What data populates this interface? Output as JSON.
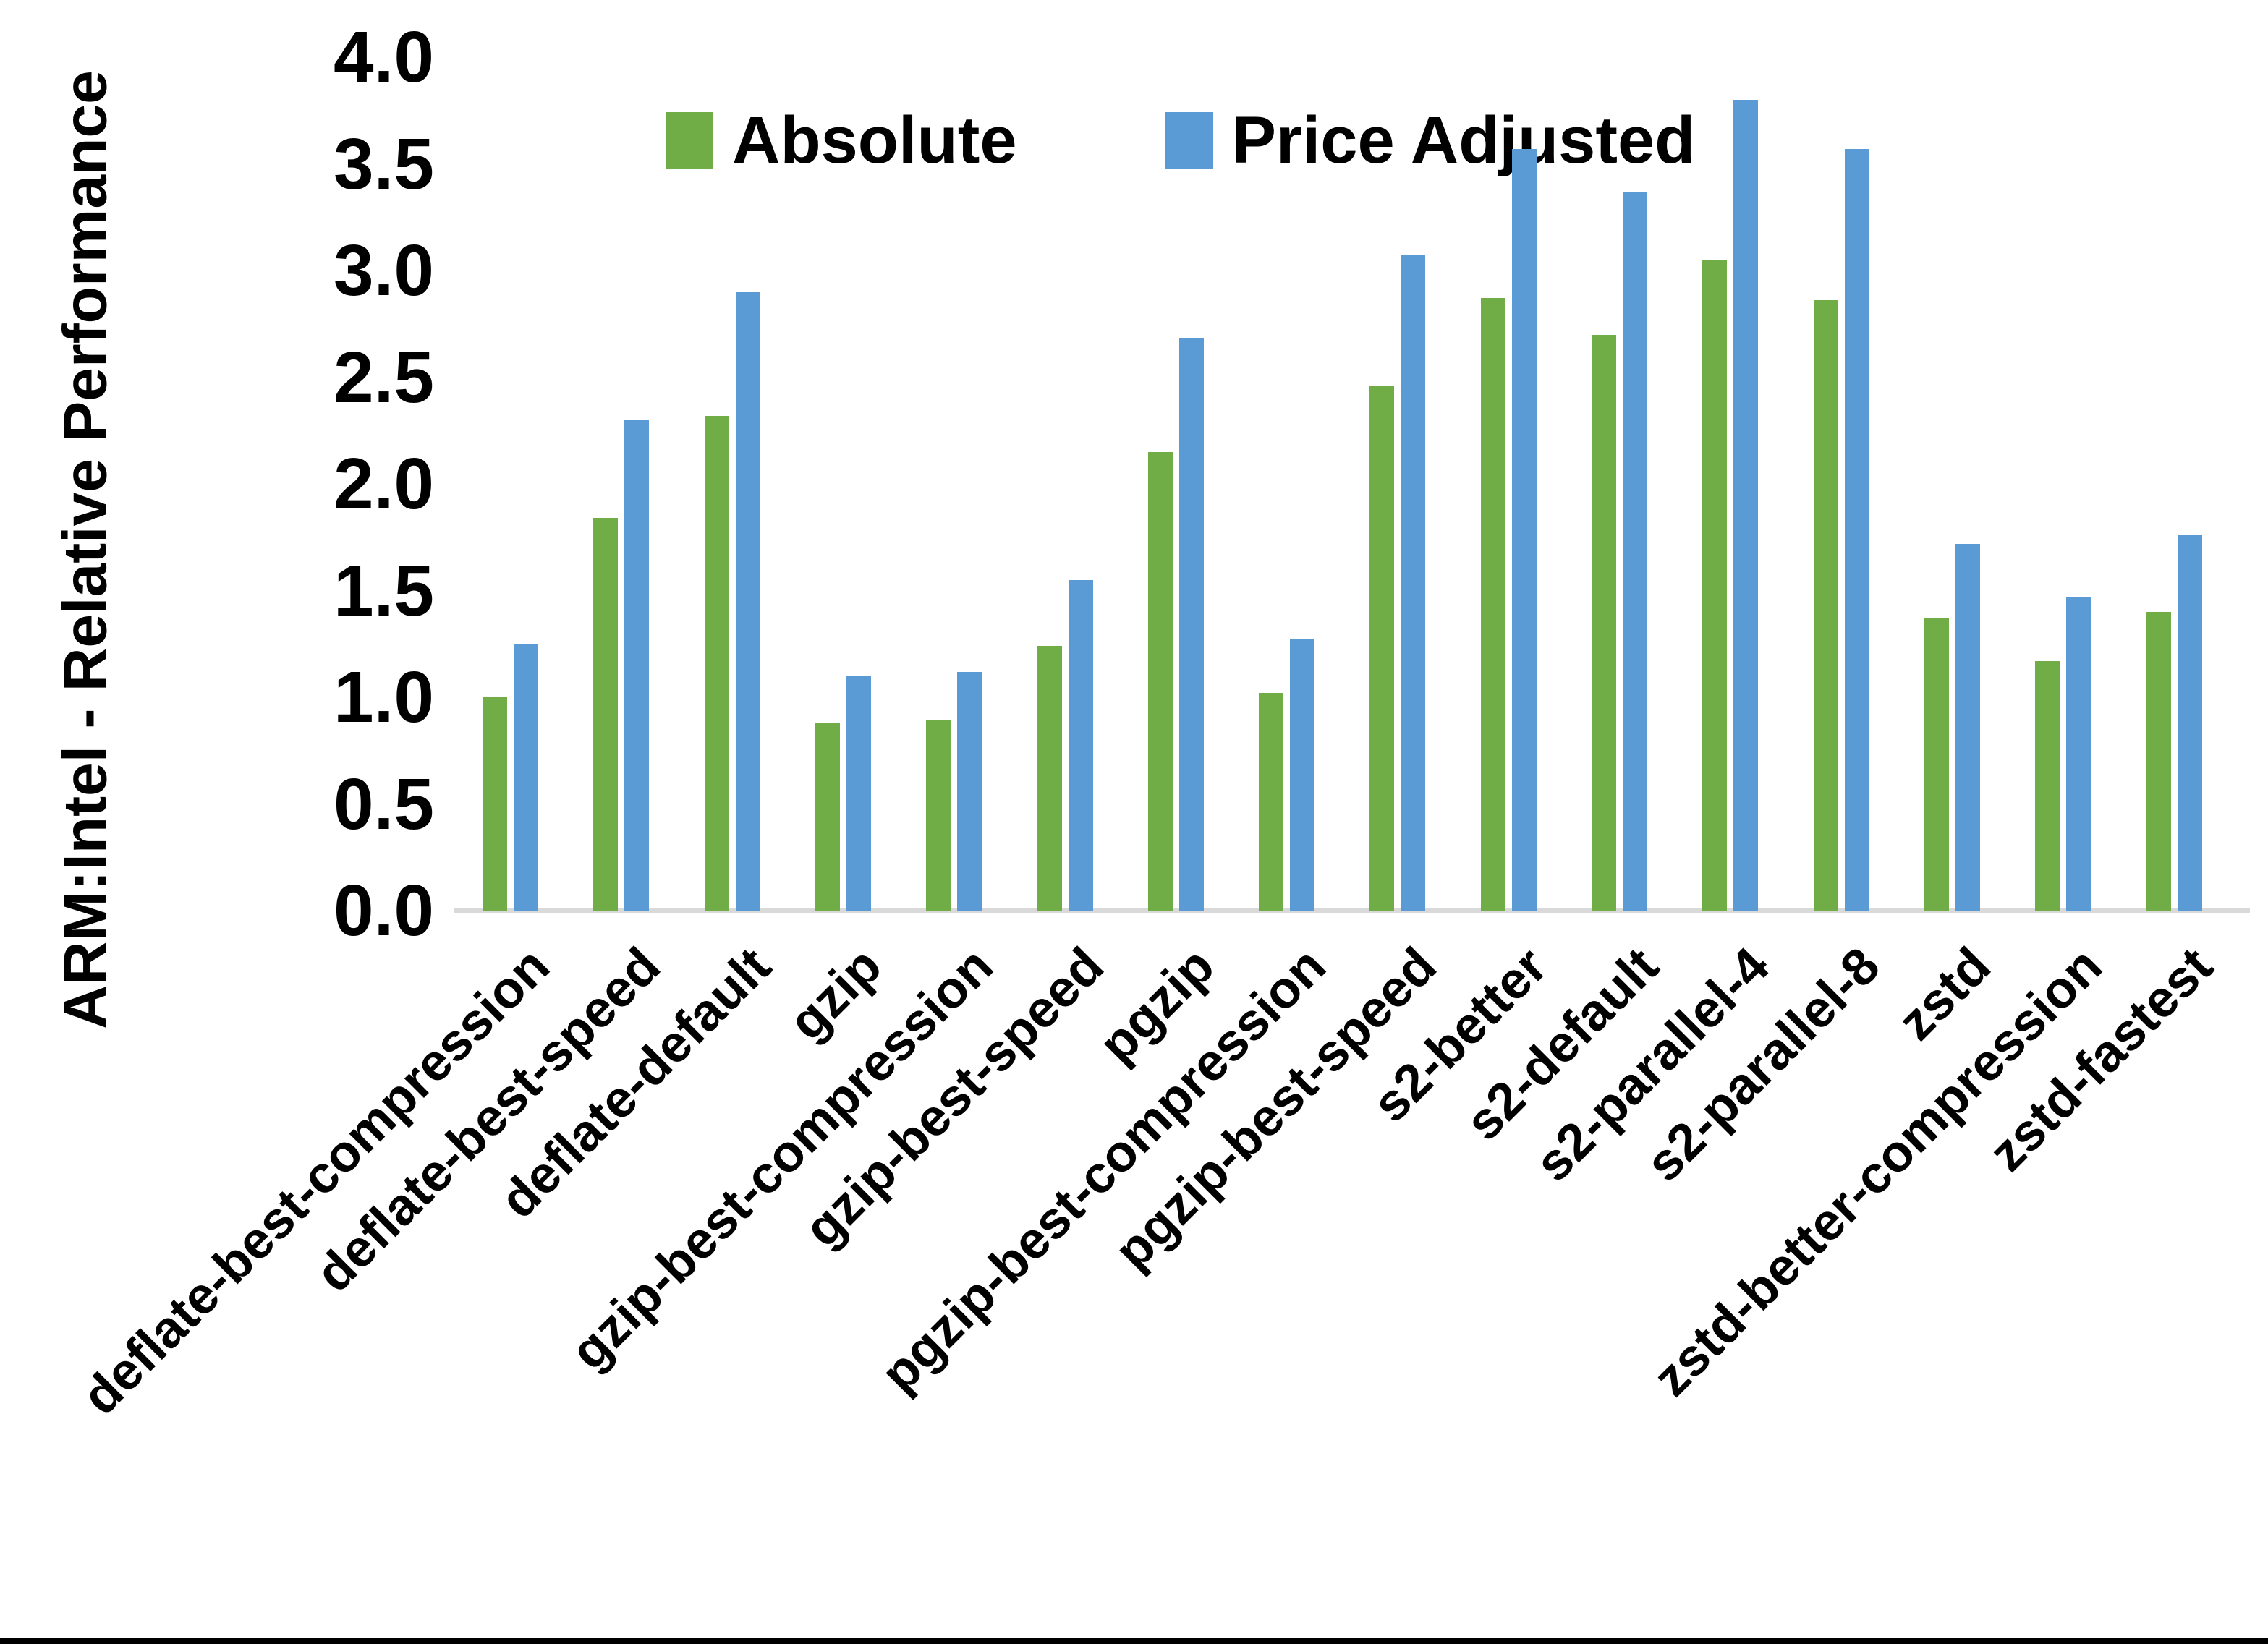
{
  "chart_data": {
    "type": "bar",
    "title": "",
    "xlabel": "",
    "ylabel": "ARM:Intel - Relative Performance",
    "ylim": [
      0.0,
      4.0
    ],
    "ytick_step": 0.5,
    "yticks": [
      "4.0",
      "3.5",
      "3.0",
      "2.5",
      "2.0",
      "1.5",
      "1.0",
      "0.5",
      "0.0"
    ],
    "grid": false,
    "legend_position": "top-center",
    "axis_line_color": "#d9d9d9",
    "text_color": "#000000",
    "background_color": "#ffffff",
    "bottom_border_color": "#000000",
    "categories": [
      "deflate-best-compression",
      "deflate-best-speed",
      "deflate-default",
      "gzip",
      "gzip-best-compression",
      "gzip-best-speed",
      "pgzip",
      "pgzip-best-compression",
      "pgzip-best-speed",
      "s2-better",
      "s2-default",
      "s2-parallel-4",
      "s2-parallel-8",
      "zstd",
      "zstd-better-compression",
      "zstd-fastest"
    ],
    "series": [
      {
        "name": "Absolute",
        "color": "#70ad47",
        "values": [
          1.0,
          1.84,
          2.32,
          0.88,
          0.89,
          1.24,
          2.15,
          1.02,
          2.46,
          2.87,
          2.7,
          3.05,
          2.86,
          1.37,
          1.17,
          1.4
        ]
      },
      {
        "name": "Price Adjusted",
        "color": "#5b9bd5",
        "values": [
          1.25,
          2.3,
          2.9,
          1.1,
          1.12,
          1.55,
          2.68,
          1.27,
          3.07,
          3.57,
          3.37,
          3.8,
          3.57,
          1.72,
          1.47,
          1.76
        ]
      }
    ]
  }
}
